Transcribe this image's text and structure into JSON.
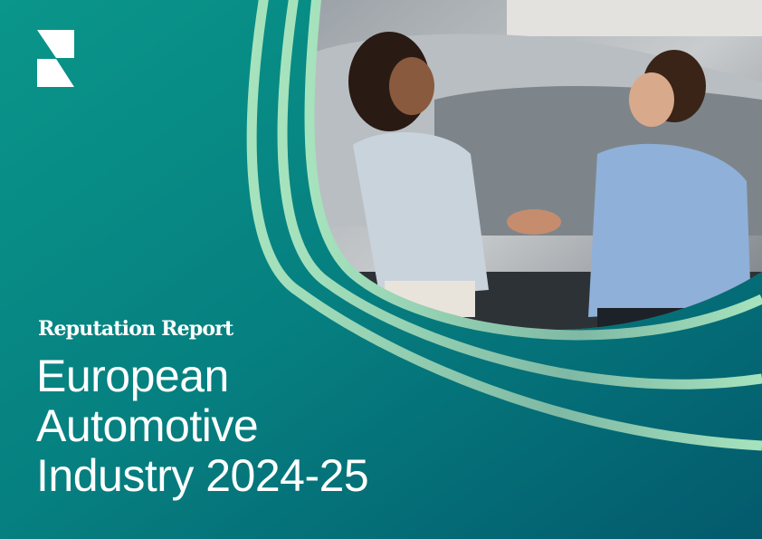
{
  "cover": {
    "eyebrow": "Reputation Report",
    "title_lines": [
      "European",
      "Automotive",
      "Industry 2024-25"
    ]
  },
  "colors": {
    "background_start": "#0a968a",
    "background_end": "#035a6c",
    "accent_stripe": "#a6e3bd",
    "text": "#ffffff"
  },
  "photo": {
    "subject": "two women shaking hands in a car dealership showroom"
  },
  "logo": {
    "icon": "brand-logo-icon"
  }
}
